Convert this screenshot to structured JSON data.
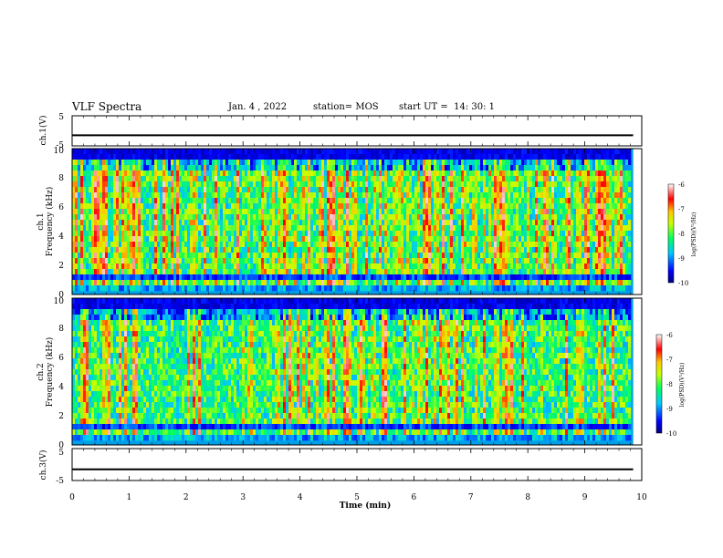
{
  "header": {
    "title": "VLF Spectra",
    "date": "Jan. 4 , 2022",
    "station": "station= MOS",
    "start": "start UT =  14: 30: 1"
  },
  "chart_data": [
    {
      "type": "line",
      "name": "ch1-waveform",
      "ylabel": "ch.1(V)",
      "ylim": [
        -5,
        5
      ],
      "yticks": [
        "5",
        "-5"
      ],
      "level": -1.5,
      "xlim": [
        0,
        10
      ]
    },
    {
      "type": "heatmap",
      "name": "ch1-spectrogram",
      "ylabel": "Frequency (kHz)",
      "ylabel2": "ch.1",
      "ylim": [
        0,
        10
      ],
      "yticks": [
        "0",
        "2",
        "4",
        "6",
        "8",
        "10"
      ],
      "xlim": [
        0,
        9.85
      ],
      "colorbar": {
        "label": "log(PSD)(V²/Hz)",
        "ticks": [
          "-6",
          "-7",
          "-8",
          "-9",
          "-10"
        ],
        "range": [
          -10,
          -6
        ]
      }
    },
    {
      "type": "heatmap",
      "name": "ch2-spectrogram",
      "ylabel": "Frequency (kHz)",
      "ylabel2": "ch.2",
      "ylim": [
        0,
        10
      ],
      "yticks": [
        "0",
        "2",
        "4",
        "6",
        "8",
        "10"
      ],
      "xlim": [
        0,
        9.85
      ],
      "colorbar": {
        "label": "log(PSD)(V²/Hz)",
        "ticks": [
          "-6",
          "-7",
          "-8",
          "-9",
          "-10"
        ],
        "range": [
          -10,
          -6
        ]
      }
    },
    {
      "type": "line",
      "name": "ch3-waveform",
      "ylabel": "ch.3(V)",
      "ylim": [
        -5,
        5
      ],
      "yticks": [
        "5",
        "-5"
      ],
      "level": -1.5,
      "xlim": [
        0,
        10
      ]
    }
  ],
  "xaxis": {
    "label": "Time (min)",
    "ticks": [
      "0",
      "1",
      "2",
      "3",
      "4",
      "5",
      "6",
      "7",
      "8",
      "9",
      "10"
    ],
    "range": [
      0,
      10
    ]
  },
  "colors": {
    "axis": "#000000",
    "background": "#ffffff"
  }
}
